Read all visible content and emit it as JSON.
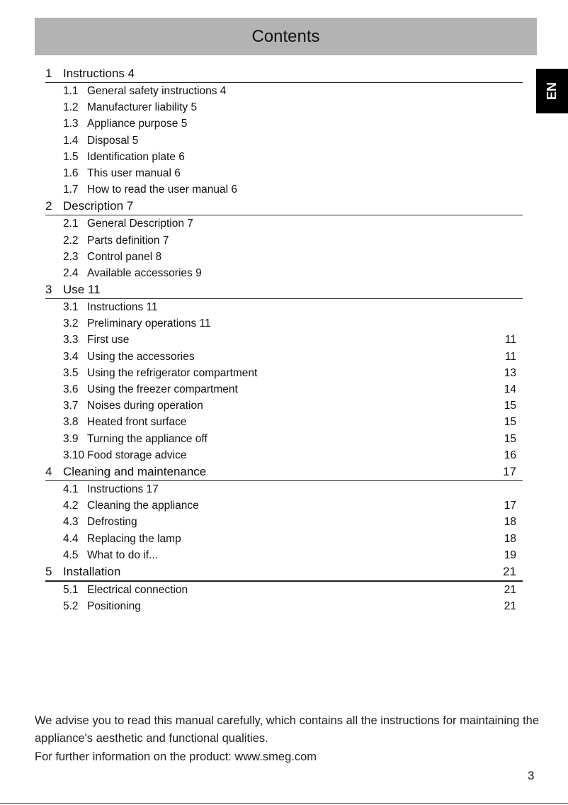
{
  "title": "Contents",
  "language_tab": "EN",
  "sections": [
    {
      "num": "1",
      "title": "Instructions 4",
      "page": "",
      "items": [
        {
          "num": "1.1",
          "title": "General safety instructions 4",
          "page": ""
        },
        {
          "num": "1.2",
          "title": "Manufacturer liability 5",
          "page": ""
        },
        {
          "num": "1.3",
          "title": "Appliance purpose 5",
          "page": ""
        },
        {
          "num": "1.4",
          "title": "Disposal 5",
          "page": ""
        },
        {
          "num": "1.5",
          "title": "Identification plate 6",
          "page": ""
        },
        {
          "num": "1.6",
          "title": "This user manual 6",
          "page": ""
        },
        {
          "num": "1.7",
          "title": "How to read the user manual 6",
          "page": ""
        }
      ]
    },
    {
      "num": "2",
      "title": "Description 7",
      "page": "",
      "items": [
        {
          "num": "2.1",
          "title": "General Description 7",
          "page": ""
        },
        {
          "num": "2.2",
          "title": "Parts definition 7",
          "page": ""
        },
        {
          "num": "2.3",
          "title": "Control panel 8",
          "page": ""
        },
        {
          "num": "2.4",
          "title": "Available accessories 9",
          "page": ""
        }
      ]
    },
    {
      "num": "3",
      "title": "Use 11",
      "page": "",
      "items": [
        {
          "num": "3.1",
          "title": "Instructions 11",
          "page": ""
        },
        {
          "num": "3.2",
          "title": "Preliminary operations 11",
          "page": ""
        },
        {
          "num": "3.3",
          "title": "First use",
          "page": "11"
        },
        {
          "num": "3.4",
          "title": "Using the accessories",
          "page": "11"
        },
        {
          "num": "3.5",
          "title": "Using the refrigerator compartment",
          "page": "13"
        },
        {
          "num": "3.6",
          "title": "Using the freezer compartment",
          "page": "14"
        },
        {
          "num": "3.7",
          "title": "Noises during operation",
          "page": "15"
        },
        {
          "num": "3.8",
          "title": "Heated front surface",
          "page": "15"
        },
        {
          "num": "3.9",
          "title": "Turning the appliance off",
          "page": "15"
        },
        {
          "num": "3.10",
          "title": "Food storage advice",
          "page": "16"
        }
      ]
    },
    {
      "num": "4",
      "title": "Cleaning and maintenance",
      "page": "17",
      "items": [
        {
          "num": "4.1",
          "title": "Instructions 17",
          "page": ""
        },
        {
          "num": "4.2",
          "title": "Cleaning the appliance",
          "page": "17"
        },
        {
          "num": "4.3",
          "title": "Defrosting",
          "page": "18"
        },
        {
          "num": "4.4",
          "title": "Replacing the lamp",
          "page": "18"
        },
        {
          "num": "4.5",
          "title": "What to do if...",
          "page": "19"
        }
      ]
    },
    {
      "num": "5",
      "title": "Installation",
      "page": "21",
      "items": [
        {
          "num": "5.1",
          "title": "Electrical connection",
          "page": "21"
        },
        {
          "num": "5.2",
          "title": "Positioning",
          "page": "21"
        }
      ]
    }
  ],
  "footer": {
    "advice": "We advise you to read this manual carefully, which contains all the instructions for maintaining the appliance's aesthetic and functional qualities.",
    "info": "For further information on the product: www.smeg.com"
  },
  "page_number": "3"
}
